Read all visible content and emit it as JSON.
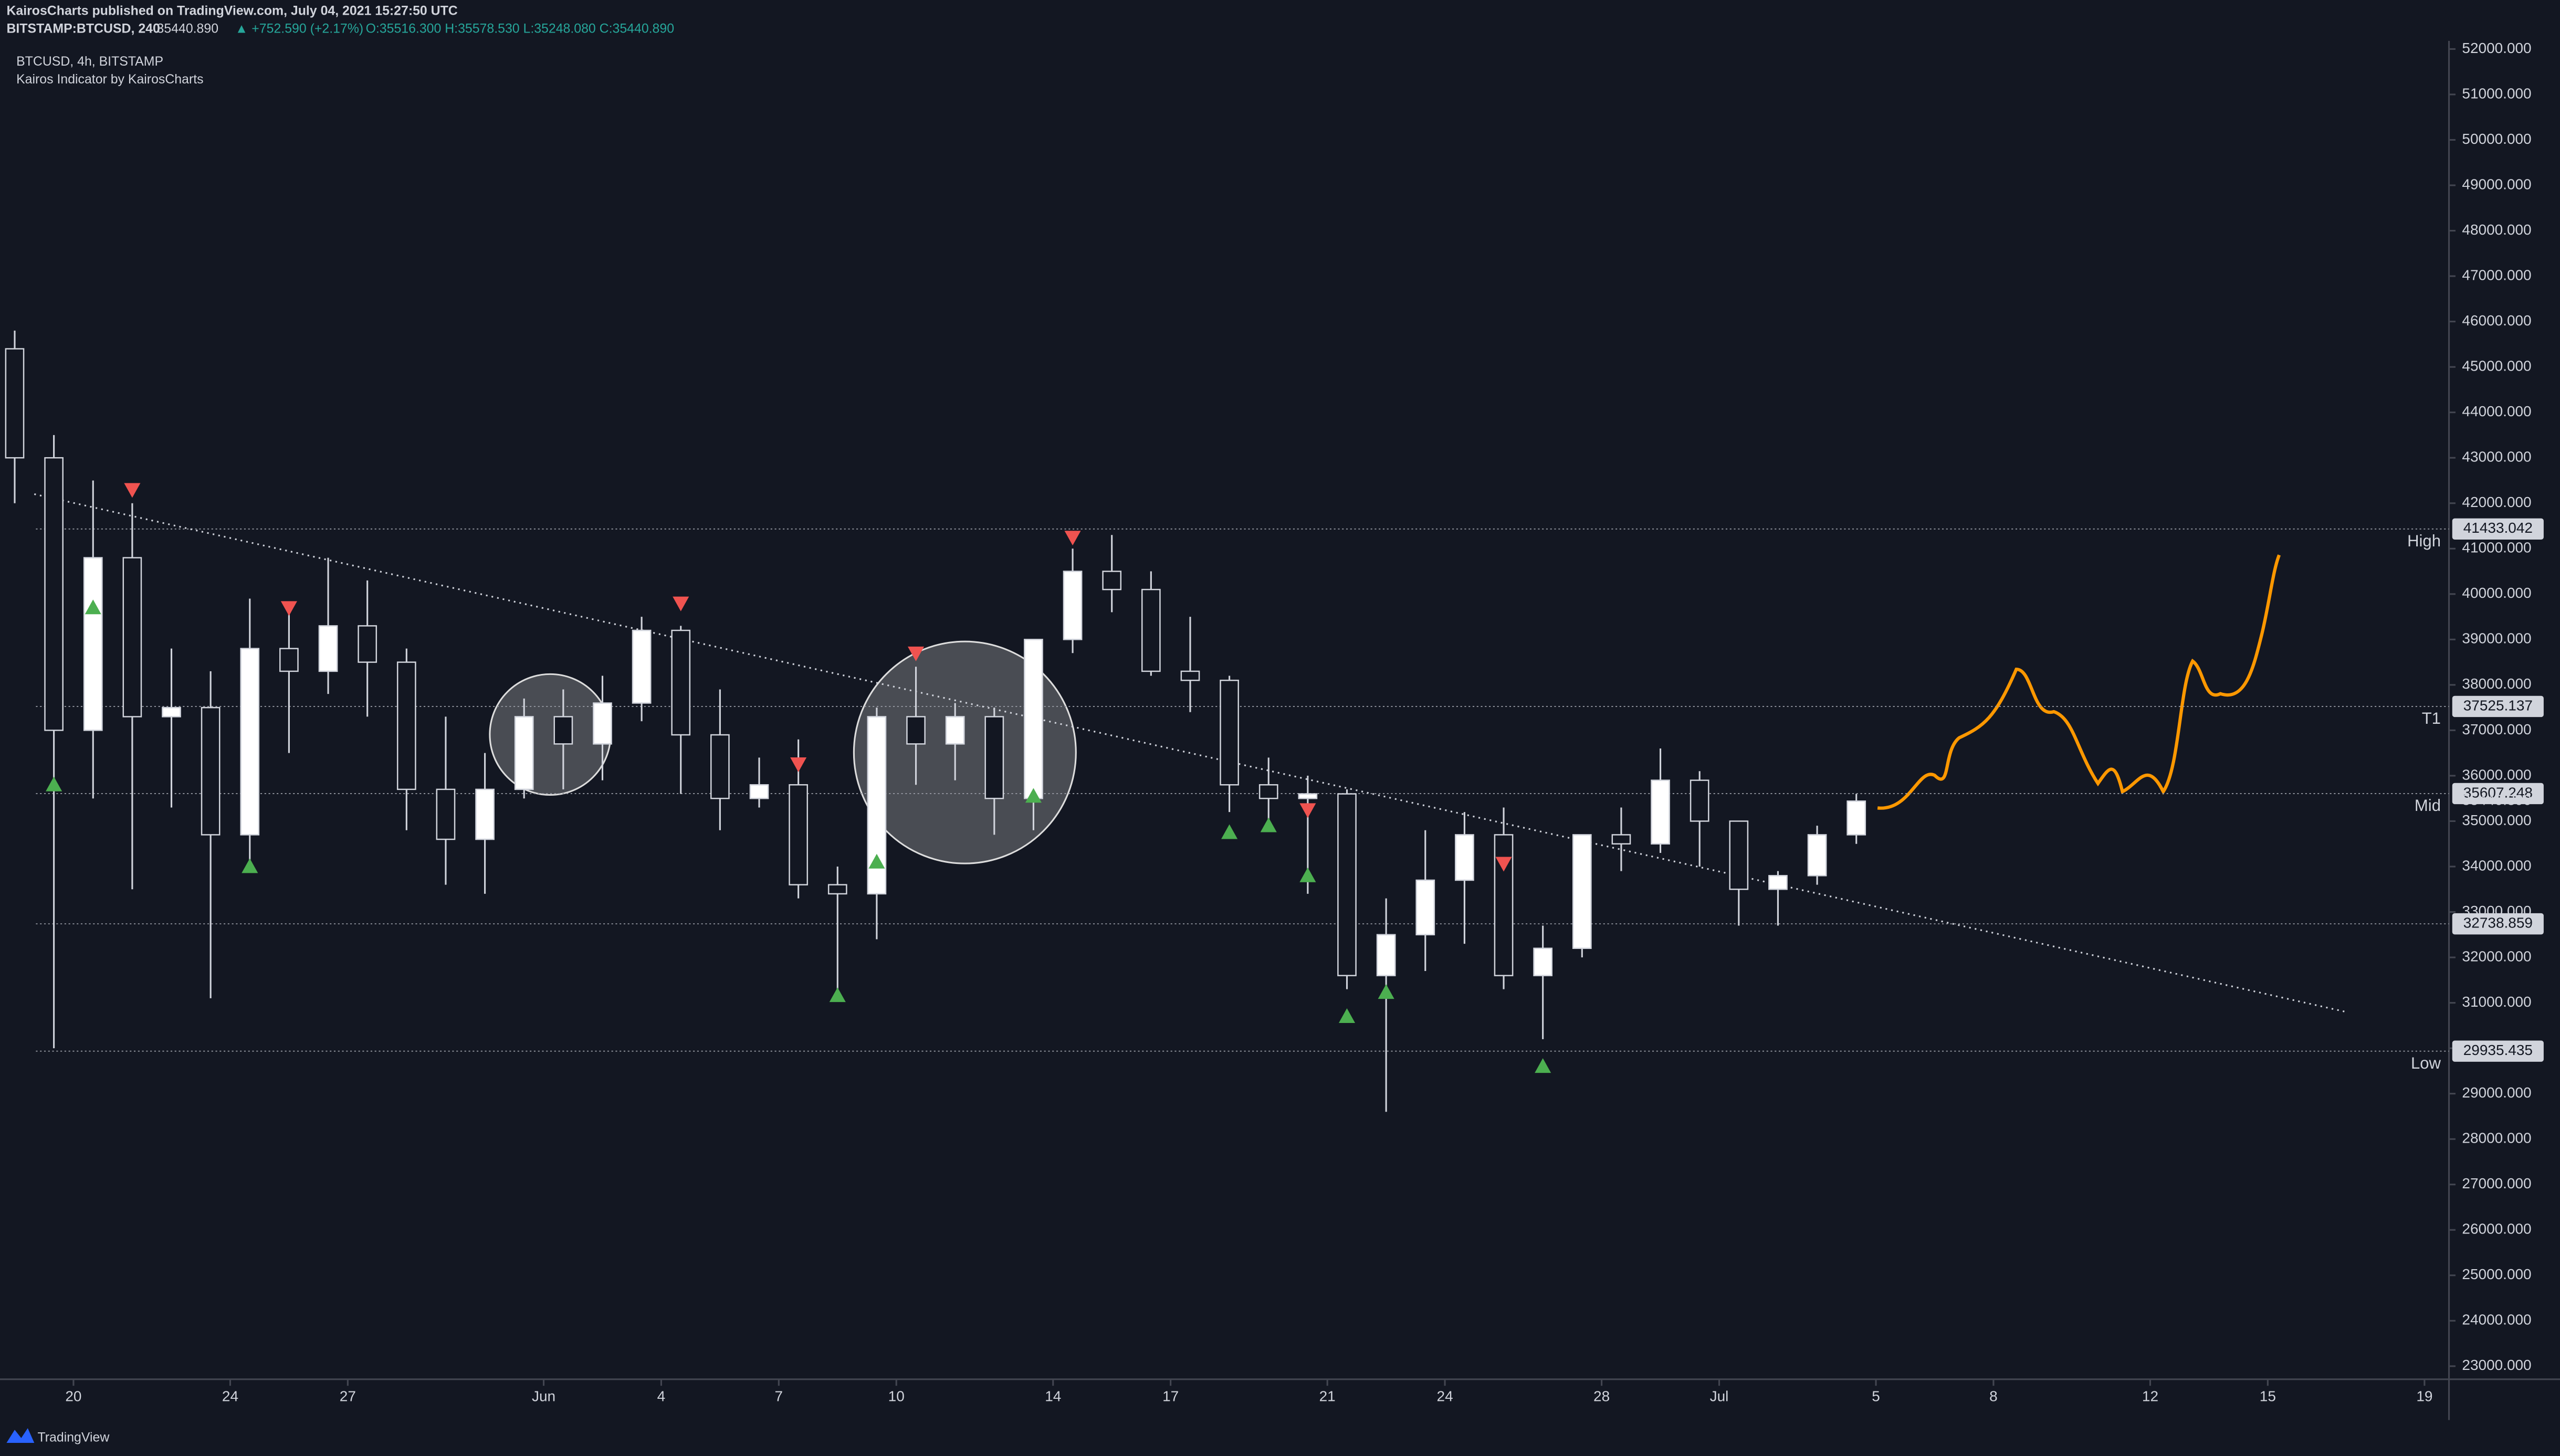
{
  "header": {
    "published": "KairosCharts published on TradingView.com, July 04, 2021 15:27:50 UTC",
    "symbol": "BITSTAMP:BTCUSD, 240",
    "last": "35440.890",
    "change": "▲ +752.590 (+2.17%)",
    "ohlc": "O:35516.300 H:35578.530 L:35248.080 C:35440.890",
    "legend": "BTCUSD, 4h, BITSTAMP",
    "indicator": "Kairos Indicator by KairosCharts"
  },
  "footer": {
    "brand": "TradingView"
  },
  "chart_data": {
    "type": "candlestick",
    "x": [
      "2021-05-18",
      "2021-05-19",
      "2021-05-20",
      "2021-05-21",
      "2021-05-22",
      "2021-05-23",
      "2021-05-24",
      "2021-05-25",
      "2021-05-26",
      "2021-05-27",
      "2021-05-28",
      "2021-05-29",
      "2021-05-30",
      "2021-05-31",
      "2021-06-01",
      "2021-06-02",
      "2021-06-03",
      "2021-06-04",
      "2021-06-05",
      "2021-06-06",
      "2021-06-07",
      "2021-06-08",
      "2021-06-09",
      "2021-06-10",
      "2021-06-11",
      "2021-06-12",
      "2021-06-13",
      "2021-06-14",
      "2021-06-15",
      "2021-06-16",
      "2021-06-17",
      "2021-06-18",
      "2021-06-19",
      "2021-06-20",
      "2021-06-21",
      "2021-06-22",
      "2021-06-23",
      "2021-06-24",
      "2021-06-25",
      "2021-06-26",
      "2021-06-27",
      "2021-06-28",
      "2021-06-29",
      "2021-06-30",
      "2021-07-01",
      "2021-07-02",
      "2021-07-03",
      "2021-07-04"
    ],
    "open": [
      45400,
      43000,
      37000,
      40800,
      37300,
      37500,
      34700,
      38800,
      38300,
      39300,
      38500,
      35700,
      34600,
      35700,
      37300,
      36700,
      37600,
      39200,
      36900,
      35500,
      35800,
      33600,
      33400,
      37300,
      36700,
      37300,
      35500,
      39000,
      40500,
      40100,
      38300,
      38100,
      35800,
      35500,
      35600,
      31600,
      32500,
      33700,
      34700,
      31600,
      32200,
      34700,
      34500,
      35900,
      35000,
      33500,
      33800,
      34700
    ],
    "high": [
      45800,
      43500,
      42500,
      42000,
      38800,
      38300,
      39900,
      39700,
      40800,
      40300,
      38800,
      37300,
      36500,
      37700,
      37900,
      38200,
      39500,
      39300,
      37900,
      36400,
      36800,
      34000,
      37500,
      38400,
      37600,
      37500,
      39000,
      41000,
      41300,
      40500,
      39500,
      38200,
      36400,
      36000,
      35700,
      33300,
      34800,
      35200,
      35300,
      32700,
      34700,
      35300,
      36600,
      36100,
      35000,
      33900,
      34900,
      35600
    ],
    "low": [
      42000,
      30000,
      35500,
      33500,
      35300,
      31100,
      34000,
      36500,
      37800,
      37300,
      34800,
      33600,
      33400,
      35500,
      35700,
      35900,
      37200,
      35600,
      34800,
      35300,
      33300,
      31100,
      32400,
      35800,
      35900,
      34700,
      34800,
      38700,
      39600,
      38200,
      37400,
      35200,
      34900,
      33400,
      31300,
      28600,
      31700,
      32300,
      31300,
      30200,
      32000,
      33900,
      34300,
      34000,
      32700,
      32700,
      33600,
      34500
    ],
    "close": [
      43000,
      37000,
      40800,
      37300,
      37500,
      34700,
      38800,
      38300,
      39300,
      38500,
      35700,
      34600,
      35700,
      37300,
      36700,
      37600,
      39200,
      36900,
      35500,
      35800,
      33600,
      33400,
      37300,
      36700,
      37300,
      35500,
      39000,
      40500,
      40100,
      38300,
      38100,
      35800,
      35500,
      35600,
      31600,
      32500,
      33700,
      34700,
      31600,
      32200,
      34700,
      34500,
      35900,
      35000,
      33500,
      33800,
      34700,
      35440.89
    ],
    "up_color": "#ffffff",
    "down_color": "#131722",
    "xlim": [
      "2021-05-18",
      "2021-07-20"
    ],
    "xticks": [
      {
        "value": "2021-05-20",
        "label": "20"
      },
      {
        "value": "2021-05-24",
        "label": "24"
      },
      {
        "value": "2021-05-27",
        "label": "27"
      },
      {
        "value": "2021-06-01",
        "label": "Jun"
      },
      {
        "value": "2021-06-04",
        "label": "4"
      },
      {
        "value": "2021-06-07",
        "label": "7"
      },
      {
        "value": "2021-06-10",
        "label": "10"
      },
      {
        "value": "2021-06-14",
        "label": "14"
      },
      {
        "value": "2021-06-17",
        "label": "17"
      },
      {
        "value": "2021-06-21",
        "label": "21"
      },
      {
        "value": "2021-06-24",
        "label": "24"
      },
      {
        "value": "2021-06-28",
        "label": "28"
      },
      {
        "value": "2021-07-01",
        "label": "Jul"
      },
      {
        "value": "2021-07-05",
        "label": "5"
      },
      {
        "value": "2021-07-08",
        "label": "8"
      },
      {
        "value": "2021-07-12",
        "label": "12"
      },
      {
        "value": "2021-07-15",
        "label": "15"
      },
      {
        "value": "2021-07-19",
        "label": "19"
      }
    ],
    "ylim": [
      22500,
      52500
    ],
    "yticks": [
      {
        "value": 23000,
        "label": "23000.000"
      },
      {
        "value": 24000,
        "label": "24000.000"
      },
      {
        "value": 25000,
        "label": "25000.000"
      },
      {
        "value": 26000,
        "label": "26000.000"
      },
      {
        "value": 27000,
        "label": "27000.000"
      },
      {
        "value": 28000,
        "label": "28000.000"
      },
      {
        "value": 29000,
        "label": "29000.000"
      },
      {
        "value": 30000,
        "label": "30000.000"
      },
      {
        "value": 31000,
        "label": "31000.000"
      },
      {
        "value": 32000,
        "label": "32000.000"
      },
      {
        "value": 33000,
        "label": "33000.000"
      },
      {
        "value": 34000,
        "label": "34000.000"
      },
      {
        "value": 35000,
        "label": "35000.000"
      },
      {
        "value": 36000,
        "label": "36000.000"
      },
      {
        "value": 37000,
        "label": "37000.000"
      },
      {
        "value": 38000,
        "label": "38000.000"
      },
      {
        "value": 39000,
        "label": "39000.000"
      },
      {
        "value": 40000,
        "label": "40000.000"
      },
      {
        "value": 41000,
        "label": "41000.000"
      },
      {
        "value": 42000,
        "label": "42000.000"
      },
      {
        "value": 43000,
        "label": "43000.000"
      },
      {
        "value": 44000,
        "label": "44000.000"
      },
      {
        "value": 45000,
        "label": "45000.000"
      },
      {
        "value": 46000,
        "label": "46000.000"
      },
      {
        "value": 47000,
        "label": "47000.000"
      },
      {
        "value": 48000,
        "label": "48000.000"
      },
      {
        "value": 49000,
        "label": "49000.000"
      },
      {
        "value": 50000,
        "label": "50000.000"
      },
      {
        "value": 51000,
        "label": "51000.000"
      },
      {
        "value": 52000,
        "label": "52000.000"
      }
    ],
    "levels": [
      {
        "name": "High",
        "value": 41433.042
      },
      {
        "name": "T1",
        "value": 37525.137
      },
      {
        "name": "Mid",
        "value": 35607.248
      },
      {
        "value": 32738.859
      },
      {
        "name": "Low",
        "value": 29935.435
      }
    ],
    "last_price": {
      "value": 35440.89,
      "label": "35440.890"
    },
    "trendline": {
      "x": [
        "2021-05-19",
        "2021-07-17"
      ],
      "values": [
        42200,
        30800
      ]
    },
    "signals": [
      {
        "name": "buy",
        "color": "#4caf50",
        "x": [
          "2021-05-19",
          "2021-05-20",
          "2021-05-24",
          "2021-06-08",
          "2021-06-09",
          "2021-06-13",
          "2021-06-18",
          "2021-06-19",
          "2021-06-20",
          "2021-06-21",
          "2021-06-22",
          "2021-06-26"
        ],
        "values": [
          35800,
          39700,
          34000,
          31160,
          34100,
          35550,
          34750,
          34900,
          33800,
          30700,
          31230,
          29600
        ]
      },
      {
        "name": "sell",
        "color": "#f05350",
        "x": [
          "2021-05-21",
          "2021-05-25",
          "2021-06-04",
          "2021-06-07",
          "2021-06-10",
          "2021-06-14",
          "2021-06-20",
          "2021-06-25"
        ],
        "values": [
          42300,
          39700,
          39800,
          36260,
          38700,
          41250,
          35250,
          34070
        ]
      }
    ]
  }
}
